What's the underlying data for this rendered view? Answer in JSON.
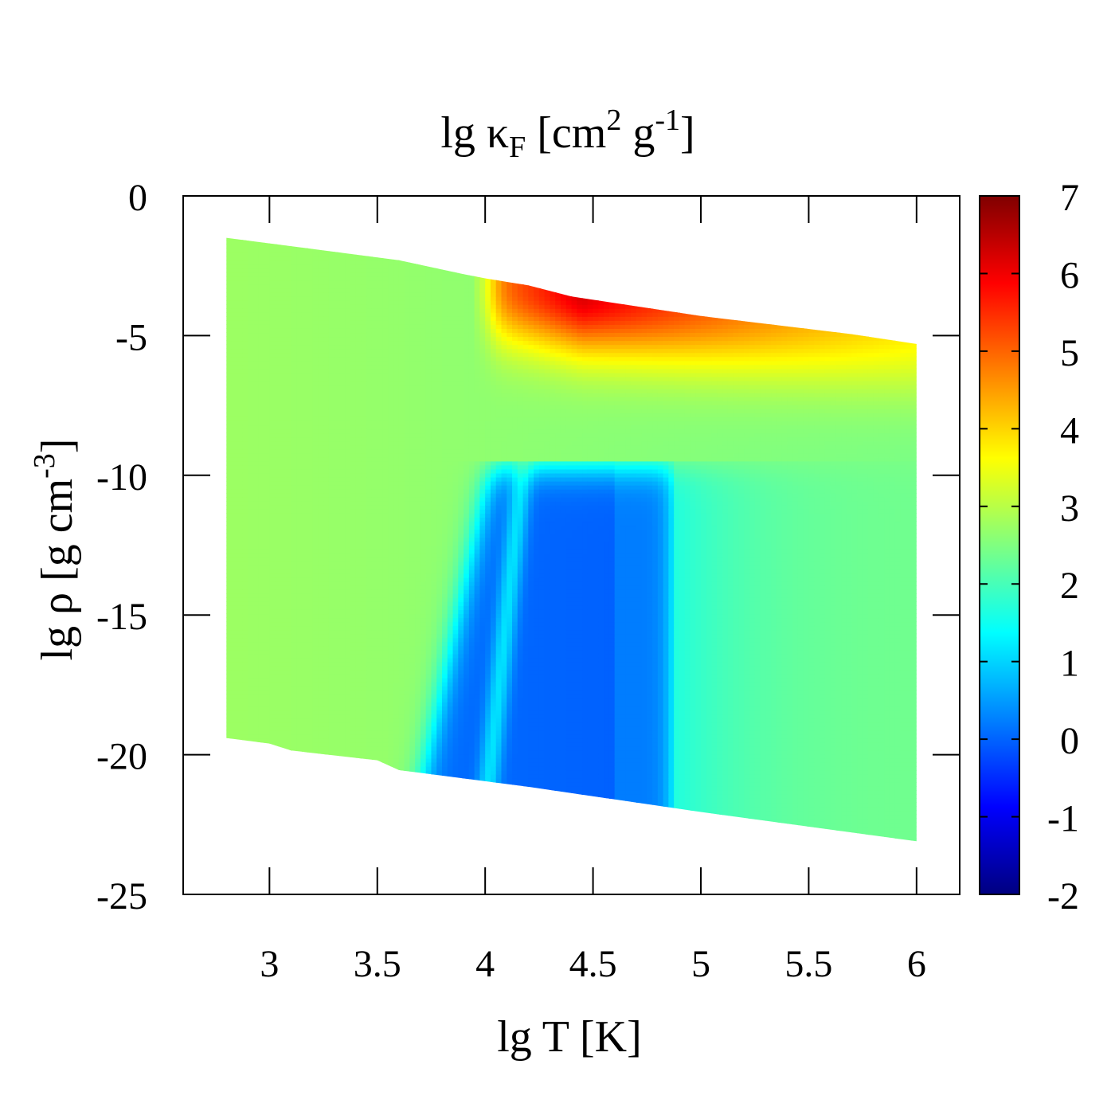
{
  "chart_data": {
    "type": "heatmap",
    "title": {
      "prefix": "lg ",
      "kappa": "κ",
      "kappa_sub": "F",
      "units_open": " [cm",
      "units_sup1": "2",
      "units_mid": " g",
      "units_sup2": "-1",
      "units_close": "]"
    },
    "xlabel": "lg T [K]",
    "ylabel": {
      "main": "lg ρ [g cm",
      "sup": "-3",
      "close": "]"
    },
    "xlim": [
      2.6,
      6.2
    ],
    "ylim": [
      -25,
      0
    ],
    "x_ticks": [
      3,
      3.5,
      4,
      4.5,
      5,
      5.5,
      6
    ],
    "x_tick_labels": [
      "3",
      "3.5",
      "4",
      "4.5",
      "5",
      "5.5",
      "6"
    ],
    "y_ticks": [
      0,
      -5,
      -10,
      -15,
      -20,
      -25
    ],
    "y_tick_labels": [
      "0",
      "-5",
      "-10",
      "-15",
      "-20",
      "-25"
    ],
    "colorbar": {
      "range": [
        -2,
        7
      ],
      "ticks": [
        7,
        6,
        5,
        4,
        3,
        2,
        1,
        0,
        -1,
        -2
      ],
      "tick_labels": [
        "7",
        "6",
        "5",
        "4",
        "3",
        "2",
        "1",
        "0",
        "-1",
        "-2"
      ],
      "colormap": "jet"
    },
    "data_domain": {
      "lgT_range": [
        2.8,
        6.0
      ],
      "top_boundary": [
        [
          2.8,
          -1.5
        ],
        [
          3.6,
          -2.3
        ],
        [
          3.9,
          -2.8
        ],
        [
          4.0,
          -2.95
        ],
        [
          4.2,
          -3.2
        ],
        [
          4.4,
          -3.6
        ],
        [
          5.0,
          -4.3
        ],
        [
          5.7,
          -4.95
        ],
        [
          6.0,
          -5.3
        ]
      ],
      "bottom_boundary": [
        [
          2.8,
          -19.4
        ],
        [
          3.0,
          -19.6
        ],
        [
          3.1,
          -19.85
        ],
        [
          3.5,
          -20.2
        ],
        [
          3.6,
          -20.55
        ],
        [
          3.7,
          -20.65
        ],
        [
          4.0,
          -20.95
        ],
        [
          4.2,
          -21.15
        ],
        [
          5.0,
          -22.05
        ],
        [
          6.0,
          -23.1
        ]
      ]
    },
    "grid": false,
    "legend": "colorbar-right"
  }
}
